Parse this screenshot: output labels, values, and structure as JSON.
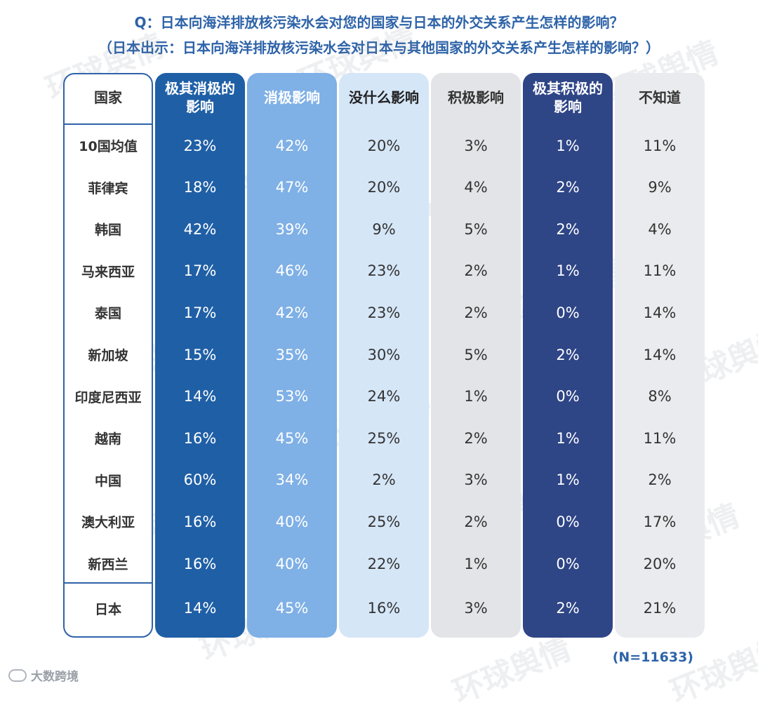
{
  "title": {
    "line1": "Q：日本向海洋排放核污染水会对您的国家与日本的外交关系产生怎样的影响？",
    "line2": "（日本出示：日本向海洋排放核污染水会对日本与其他国家的外交关系产生怎样的影响？）"
  },
  "colors": {
    "col1": "#1f5fa6",
    "col2": "#7fb0e6",
    "col3": "#d5e6f7",
    "col4": "#e2e4e7",
    "col5": "#2e4586",
    "col6": "#eaebee",
    "accent": "#2e63a8"
  },
  "watermark": "环球舆情",
  "source": "大数跨境",
  "sample_note": "(N=11633)",
  "chart_data": {
    "type": "table",
    "columns": [
      "国家",
      "极其消极的影响",
      "消极影响",
      "没什么影响",
      "积极影响",
      "极其积极的影响",
      "不知道"
    ],
    "rows": [
      {
        "country": "10国均值",
        "values": [
          "23%",
          "42%",
          "20%",
          "3%",
          "1%",
          "11%"
        ]
      },
      {
        "country": "菲律宾",
        "values": [
          "18%",
          "47%",
          "20%",
          "4%",
          "2%",
          "9%"
        ]
      },
      {
        "country": "韩国",
        "values": [
          "42%",
          "39%",
          "9%",
          "5%",
          "2%",
          "4%"
        ]
      },
      {
        "country": "马来西亚",
        "values": [
          "17%",
          "46%",
          "23%",
          "2%",
          "1%",
          "11%"
        ]
      },
      {
        "country": "泰国",
        "values": [
          "17%",
          "42%",
          "23%",
          "2%",
          "0%",
          "14%"
        ]
      },
      {
        "country": "新加坡",
        "values": [
          "15%",
          "35%",
          "30%",
          "5%",
          "2%",
          "14%"
        ]
      },
      {
        "country": "印度尼西亚",
        "values": [
          "14%",
          "53%",
          "24%",
          "1%",
          "0%",
          "8%"
        ]
      },
      {
        "country": "越南",
        "values": [
          "16%",
          "45%",
          "25%",
          "2%",
          "1%",
          "11%"
        ]
      },
      {
        "country": "中国",
        "values": [
          "60%",
          "34%",
          "2%",
          "3%",
          "1%",
          "2%"
        ]
      },
      {
        "country": "澳大利亚",
        "values": [
          "16%",
          "40%",
          "25%",
          "2%",
          "0%",
          "17%"
        ]
      },
      {
        "country": "新西兰",
        "values": [
          "16%",
          "40%",
          "22%",
          "1%",
          "0%",
          "20%"
        ]
      },
      {
        "country": "日本",
        "values": [
          "14%",
          "45%",
          "16%",
          "3%",
          "2%",
          "21%"
        ]
      }
    ]
  }
}
